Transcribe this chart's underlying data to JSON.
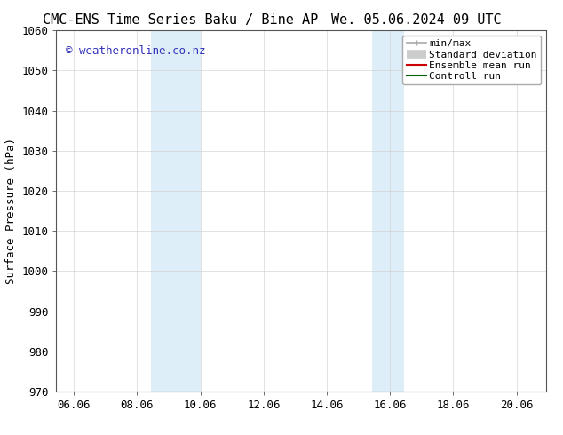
{
  "title_left": "CMC-ENS Time Series Baku / Bine AP",
  "title_right": "We. 05.06.2024 09 UTC",
  "ylabel": "Surface Pressure (hPa)",
  "xlim_min": 5.5,
  "xlim_max": 21.0,
  "ylim_min": 970,
  "ylim_max": 1060,
  "xticks": [
    6.06,
    8.06,
    10.06,
    12.06,
    14.06,
    16.06,
    18.06,
    20.06
  ],
  "xtick_labels": [
    "06.06",
    "08.06",
    "10.06",
    "12.06",
    "14.06",
    "16.06",
    "18.06",
    "20.06"
  ],
  "yticks": [
    970,
    980,
    990,
    1000,
    1010,
    1020,
    1030,
    1040,
    1050,
    1060
  ],
  "shaded_bands": [
    {
      "x_start": 8.5,
      "x_end": 10.06
    },
    {
      "x_start": 15.5,
      "x_end": 16.5
    }
  ],
  "shade_color": "#ddeef8",
  "background_color": "#ffffff",
  "grid_color": "#cccccc",
  "watermark_text": "© weatheronline.co.nz",
  "watermark_color": "#3333bb",
  "legend_items": [
    {
      "label": "min/max",
      "color": "#aaaaaa",
      "lw": 1.2,
      "style": "minmax"
    },
    {
      "label": "Standard deviation",
      "color": "#cccccc",
      "lw": 7,
      "style": "rect"
    },
    {
      "label": "Ensemble mean run",
      "color": "#cc0000",
      "lw": 1.5,
      "style": "line"
    },
    {
      "label": "Controll run",
      "color": "#006600",
      "lw": 1.5,
      "style": "line"
    }
  ],
  "title_fontsize": 11,
  "axis_fontsize": 9,
  "tick_fontsize": 9,
  "legend_fontsize": 8,
  "watermark_fontsize": 9
}
